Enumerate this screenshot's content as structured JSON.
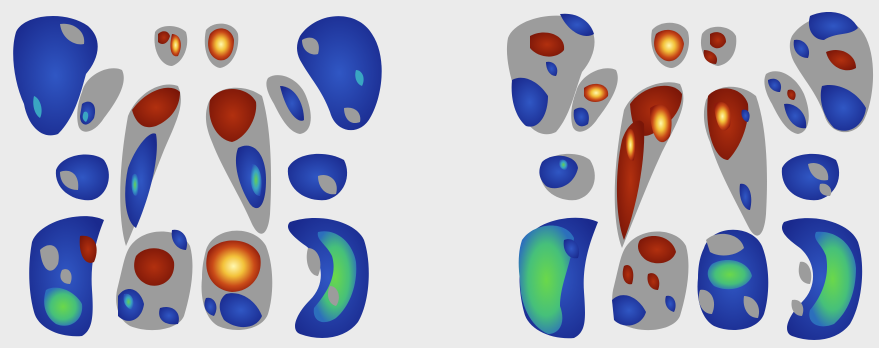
{
  "figure": {
    "background": "#ebebeb",
    "panels": [
      {
        "id": "left-panel"
      },
      {
        "id": "right-panel"
      }
    ],
    "structures": [
      "superior-structure-pair",
      "upper-outer-structure",
      "upper-inner-structure",
      "elongated-central-structure",
      "small-round-structure",
      "lower-outer-structure",
      "lower-inner-structure"
    ],
    "colormap": {
      "base": "#9c9c9c",
      "negative_dark": "#1a2a8e",
      "negative_mid": "#2e4cb8",
      "negative_light": "#3fa8c0",
      "negative_peak": "#5bd14a",
      "positive_dark": "#8e1a0c",
      "positive_mid": "#c4461a",
      "positive_light": "#f0b832",
      "positive_peak": "#fff6a0"
    }
  }
}
